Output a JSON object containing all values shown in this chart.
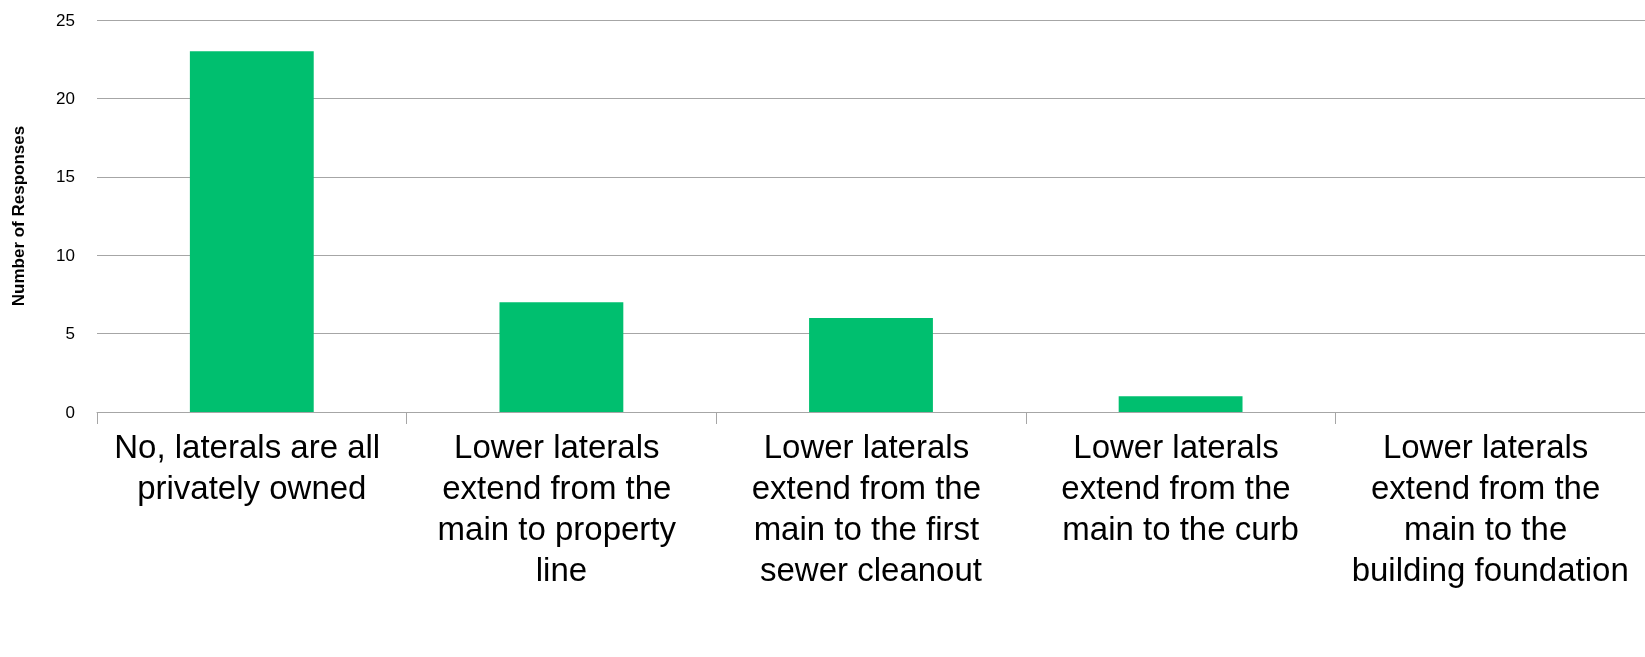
{
  "chart_data": {
    "type": "bar",
    "ylabel": "Number of Responses",
    "categories": [
      "No, laterals are all privately owned",
      "Lower laterals extend from the main to property line",
      "Lower laterals extend from the main to the first sewer cleanout",
      "Lower laterals extend from the main to the curb",
      "Lower laterals extend from the main to the building foundation"
    ],
    "values": [
      23,
      7,
      6,
      1,
      0
    ],
    "color": "#00bf6f",
    "ylim": [
      0,
      25
    ],
    "yticks": [
      0,
      5,
      10,
      15,
      20,
      25
    ],
    "grid": "y"
  }
}
